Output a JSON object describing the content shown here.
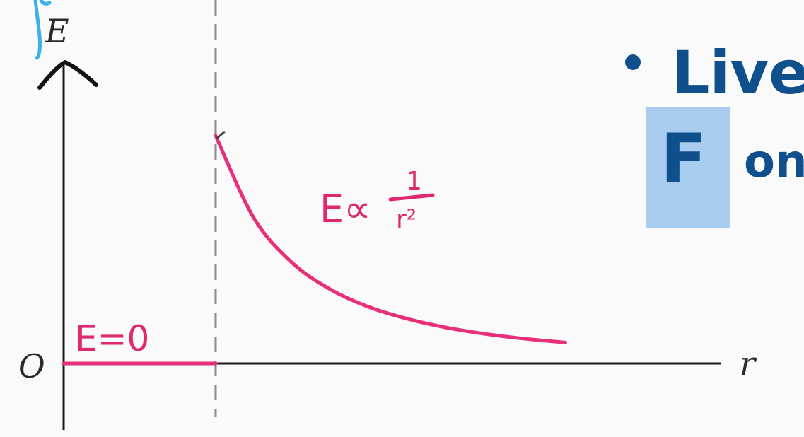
{
  "chart_data": {
    "type": "line",
    "xlabel": "r",
    "ylabel": "E",
    "origin_label": "O",
    "series": [
      {
        "segment": "inside",
        "x": [
          0,
          1
        ],
        "y": [
          0,
          0
        ]
      },
      {
        "segment": "outside",
        "x": [
          1,
          1.25,
          1.5,
          1.75,
          2,
          2.25,
          2.5,
          2.75,
          3,
          3.3
        ],
        "y": [
          1,
          0.64,
          0.444,
          0.327,
          0.25,
          0.198,
          0.16,
          0.132,
          0.111,
          0.092
        ]
      }
    ],
    "boundary_x": 1,
    "annotations": {
      "inside": "E=0",
      "outside_lhs": "E∝",
      "outside_num": "1",
      "outside_den": "r²"
    },
    "colors": {
      "curve": "#e8307a",
      "handwriting": "#e0286f",
      "axes": "#1a1a1a",
      "dashed_line": "#8a8a8a",
      "blue_ink": "#0f4f8c",
      "highlight": "#a9cdf1",
      "cyan_ink": "#3fb0e8"
    }
  },
  "side_notes": {
    "bullet_text": "Live",
    "highlight_letter": "F",
    "trailing_text": "on"
  }
}
